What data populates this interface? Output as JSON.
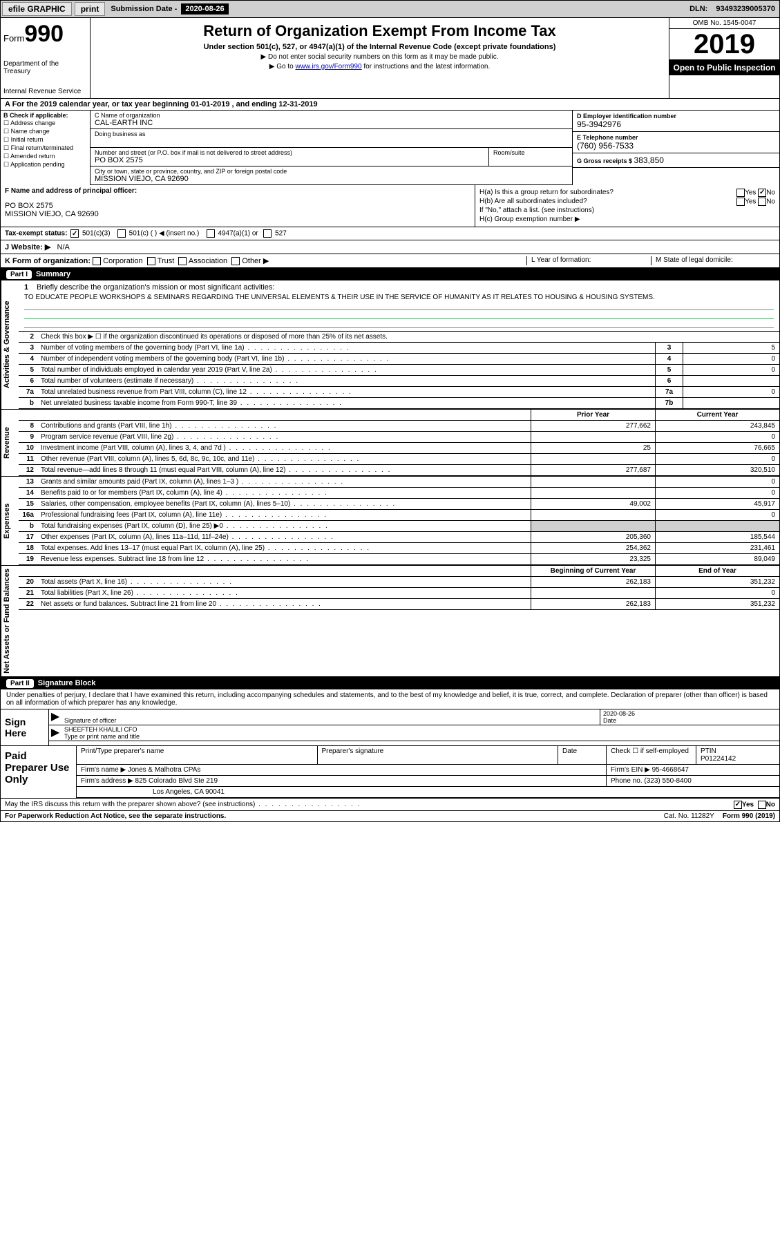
{
  "topbar": {
    "efile": "efile GRAPHIC",
    "print": "print",
    "subdate_label": "Submission Date - ",
    "subdate": "2020-08-26",
    "dln_label": "DLN: ",
    "dln": "93493239005370"
  },
  "header": {
    "form_word": "Form",
    "form_num": "990",
    "dept": "Department of the Treasury",
    "irs": "Internal Revenue Service",
    "title": "Return of Organization Exempt From Income Tax",
    "sub": "Under section 501(c), 527, or 4947(a)(1) of the Internal Revenue Code (except private foundations)",
    "note1": "▶ Do not enter social security numbers on this form as it may be made public.",
    "note2_a": "▶ Go to ",
    "note2_link": "www.irs.gov/Form990",
    "note2_b": " for instructions and the latest information.",
    "omb": "OMB No. 1545-0047",
    "year": "2019",
    "open": "Open to Public Inspection"
  },
  "period": "A   For the 2019 calendar year, or tax year beginning 01-01-2019    , and ending 12-31-2019",
  "B": {
    "label": "B Check if applicable:",
    "c1": "Address change",
    "c2": "Name change",
    "c3": "Initial return",
    "c4": "Final return/terminated",
    "c5": "Amended return",
    "c6": "Application pending"
  },
  "C": {
    "name_label": "C Name of organization",
    "name": "CAL-EARTH INC",
    "dba_label": "Doing business as",
    "addr_label": "Number and street (or P.O. box if mail is not delivered to street address)",
    "room_label": "Room/suite",
    "addr": "PO BOX 2575",
    "city_label": "City or town, state or province, country, and ZIP or foreign postal code",
    "city": "MISSION VIEJO, CA  92690"
  },
  "D": {
    "ein_label": "D Employer identification number",
    "ein": "95-3942976",
    "tel_label": "E Telephone number",
    "tel": "(760) 956-7533",
    "gross_label": "G Gross receipts $ ",
    "gross": "383,850"
  },
  "F": {
    "label": "F  Name and address of principal officer:",
    "addr1": "PO BOX 2575",
    "addr2": "MISSION VIEJO, CA  92690"
  },
  "H": {
    "ha": "H(a)  Is this a group return for subordinates?",
    "hb": "H(b)  Are all subordinates included?",
    "hnote": "If \"No,\" attach a list. (see instructions)",
    "hc": "H(c)  Group exemption number ▶",
    "yes": "Yes",
    "no": "No"
  },
  "I": {
    "label": "Tax-exempt status:",
    "o1": "501(c)(3)",
    "o2": "501(c) (   ) ◀ (insert no.)",
    "o3": "4947(a)(1) or",
    "o4": "527"
  },
  "J": {
    "label": "J    Website: ▶",
    "val": "N/A"
  },
  "K": {
    "label": "K Form of organization:",
    "corp": "Corporation",
    "trust": "Trust",
    "assoc": "Association",
    "other": "Other ▶"
  },
  "L": {
    "label": "L Year of formation:"
  },
  "M": {
    "label": "M State of legal domicile:"
  },
  "parts": {
    "p1": "Part I",
    "p1t": "Summary",
    "p2": "Part II",
    "p2t": "Signature Block"
  },
  "sidelabels": {
    "ag": "Activities & Governance",
    "rev": "Revenue",
    "exp": "Expenses",
    "na": "Net Assets or Fund Balances"
  },
  "q1": {
    "n": "1",
    "label": "Briefly describe the organization's mission or most significant activities:",
    "mission": "TO EDUCATE PEOPLE WORKSHOPS & SEMINARS REGARDING THE UNIVERSAL ELEMENTS & THEIR USE IN THE SERVICE OF HUMANITY AS IT RELATES TO HOUSING & HOUSING SYSTEMS."
  },
  "q2": {
    "n": "2",
    "t": "Check this box ▶ ☐  if the organization discontinued its operations or disposed of more than 25% of its net assets."
  },
  "lines_ag": [
    {
      "n": "3",
      "t": "Number of voting members of the governing body (Part VI, line 1a)",
      "c": "3",
      "v": "5"
    },
    {
      "n": "4",
      "t": "Number of independent voting members of the governing body (Part VI, line 1b)",
      "c": "4",
      "v": "0"
    },
    {
      "n": "5",
      "t": "Total number of individuals employed in calendar year 2019 (Part V, line 2a)",
      "c": "5",
      "v": "0"
    },
    {
      "n": "6",
      "t": "Total number of volunteers (estimate if necessary)",
      "c": "6",
      "v": ""
    },
    {
      "n": "7a",
      "t": "Total unrelated business revenue from Part VIII, column (C), line 12",
      "c": "7a",
      "v": "0"
    },
    {
      "n": "b",
      "t": "Net unrelated business taxable income from Form 990-T, line 39",
      "c": "7b",
      "v": ""
    }
  ],
  "colheads": {
    "py": "Prior Year",
    "cy": "Current Year"
  },
  "lines_rev": [
    {
      "n": "8",
      "t": "Contributions and grants (Part VIII, line 1h)",
      "py": "277,662",
      "cy": "243,845"
    },
    {
      "n": "9",
      "t": "Program service revenue (Part VIII, line 2g)",
      "py": "",
      "cy": "0"
    },
    {
      "n": "10",
      "t": "Investment income (Part VIII, column (A), lines 3, 4, and 7d )",
      "py": "25",
      "cy": "76,665"
    },
    {
      "n": "11",
      "t": "Other revenue (Part VIII, column (A), lines 5, 6d, 8c, 9c, 10c, and 11e)",
      "py": "",
      "cy": "0"
    },
    {
      "n": "12",
      "t": "Total revenue—add lines 8 through 11 (must equal Part VIII, column (A), line 12)",
      "py": "277,687",
      "cy": "320,510"
    }
  ],
  "lines_exp": [
    {
      "n": "13",
      "t": "Grants and similar amounts paid (Part IX, column (A), lines 1–3 )",
      "py": "",
      "cy": "0"
    },
    {
      "n": "14",
      "t": "Benefits paid to or for members (Part IX, column (A), line 4)",
      "py": "",
      "cy": "0"
    },
    {
      "n": "15",
      "t": "Salaries, other compensation, employee benefits (Part IX, column (A), lines 5–10)",
      "py": "49,002",
      "cy": "45,917"
    },
    {
      "n": "16a",
      "t": "Professional fundraising fees (Part IX, column (A), line 11e)",
      "py": "",
      "cy": "0"
    },
    {
      "n": "b",
      "t": "Total fundraising expenses (Part IX, column (D), line 25) ▶0",
      "py": "shaded",
      "cy": "shaded"
    },
    {
      "n": "17",
      "t": "Other expenses (Part IX, column (A), lines 11a–11d, 11f–24e)",
      "py": "205,360",
      "cy": "185,544"
    },
    {
      "n": "18",
      "t": "Total expenses. Add lines 13–17 (must equal Part IX, column (A), line 25)",
      "py": "254,362",
      "cy": "231,461"
    },
    {
      "n": "19",
      "t": "Revenue less expenses. Subtract line 18 from line 12",
      "py": "23,325",
      "cy": "89,049"
    }
  ],
  "colheads2": {
    "bcy": "Beginning of Current Year",
    "eoy": "End of Year"
  },
  "lines_na": [
    {
      "n": "20",
      "t": "Total assets (Part X, line 16)",
      "py": "262,183",
      "cy": "351,232"
    },
    {
      "n": "21",
      "t": "Total liabilities (Part X, line 26)",
      "py": "",
      "cy": "0"
    },
    {
      "n": "22",
      "t": "Net assets or fund balances. Subtract line 21 from line 20",
      "py": "262,183",
      "cy": "351,232"
    }
  ],
  "sig": {
    "penalty": "Under penalties of perjury, I declare that I have examined this return, including accompanying schedules and statements, and to the best of my knowledge and belief, it is true, correct, and complete. Declaration of preparer (other than officer) is based on all information of which preparer has any knowledge.",
    "signhere": "Sign Here",
    "sigoff": "Signature of officer",
    "date": "Date",
    "sigdate": "2020-08-26",
    "name": "SHEEFTEH KHALILI CFO",
    "nametitle": "Type or print name and title"
  },
  "prep": {
    "label": "Paid Preparer Use Only",
    "h1": "Print/Type preparer's name",
    "h2": "Preparer's signature",
    "h3": "Date",
    "h4": "Check ☐  if self-employed",
    "h5": "PTIN",
    "ptin": "P01224142",
    "firm_label": "Firm's name     ▶",
    "firm": "Jones & Malhotra CPAs",
    "ein_label": "Firm's EIN ▶",
    "ein": "95-4668647",
    "addr_label": "Firm's address ▶",
    "addr1": "825 Colorado Blvd Ste 219",
    "addr2": "Los Angeles, CA  90041",
    "phone_label": "Phone no.",
    "phone": "(323) 550-8400"
  },
  "discuss": "May the IRS discuss this return with the preparer shown above? (see instructions)",
  "footer": {
    "pra": "For Paperwork Reduction Act Notice, see the separate instructions.",
    "cat": "Cat. No. 11282Y",
    "form": "Form 990 (2019)"
  },
  "colors": {
    "linkblue": "#0000cc",
    "green": "#2a8a4a",
    "black": "#000000",
    "gray": "#cfcfcf"
  }
}
